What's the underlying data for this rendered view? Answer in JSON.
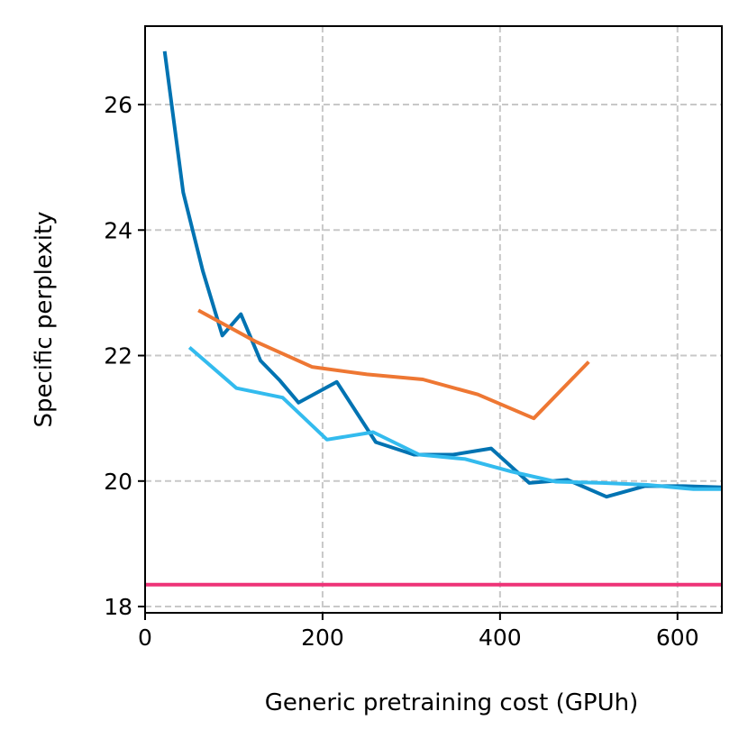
{
  "chart_data": {
    "type": "line",
    "title": "",
    "xlabel": "Generic pretraining cost (GPUh)",
    "ylabel": "Specific perplexity",
    "xlim": [
      0,
      650
    ],
    "ylim": [
      17.9,
      27.25
    ],
    "xticks": [
      0,
      200,
      400,
      600
    ],
    "yticks": [
      18,
      20,
      22,
      24,
      26
    ],
    "grid": true,
    "legend": "none",
    "series": [
      {
        "name": "dark-blue",
        "color": "#0173b2",
        "x": [
          22,
          43,
          65,
          87,
          108,
          130,
          152,
          173,
          216,
          260,
          303,
          347,
          390,
          433,
          476,
          520,
          563,
          606,
          650
        ],
        "y": [
          26.85,
          24.6,
          23.35,
          22.32,
          22.66,
          21.92,
          21.6,
          21.25,
          21.58,
          20.62,
          20.42,
          20.42,
          20.52,
          19.97,
          20.02,
          19.75,
          19.92,
          19.92,
          19.9
        ]
      },
      {
        "name": "orange",
        "color": "#ee7733",
        "x": [
          60,
          125,
          188,
          250,
          313,
          375,
          438,
          500
        ],
        "y": [
          22.72,
          22.22,
          21.82,
          21.7,
          21.62,
          21.38,
          21.0,
          21.9
        ]
      },
      {
        "name": "light-blue",
        "color": "#33bbee",
        "x": [
          50,
          103,
          155,
          205,
          257,
          309,
          361,
          413,
          463,
          515,
          566,
          618,
          650
        ],
        "y": [
          22.13,
          21.48,
          21.33,
          20.66,
          20.78,
          20.42,
          20.35,
          20.15,
          19.99,
          19.97,
          19.94,
          19.87,
          19.87
        ]
      },
      {
        "name": "pink-baseline",
        "color": "#ee3377",
        "x": [
          0,
          650
        ],
        "y": [
          18.35,
          18.35
        ]
      }
    ]
  }
}
